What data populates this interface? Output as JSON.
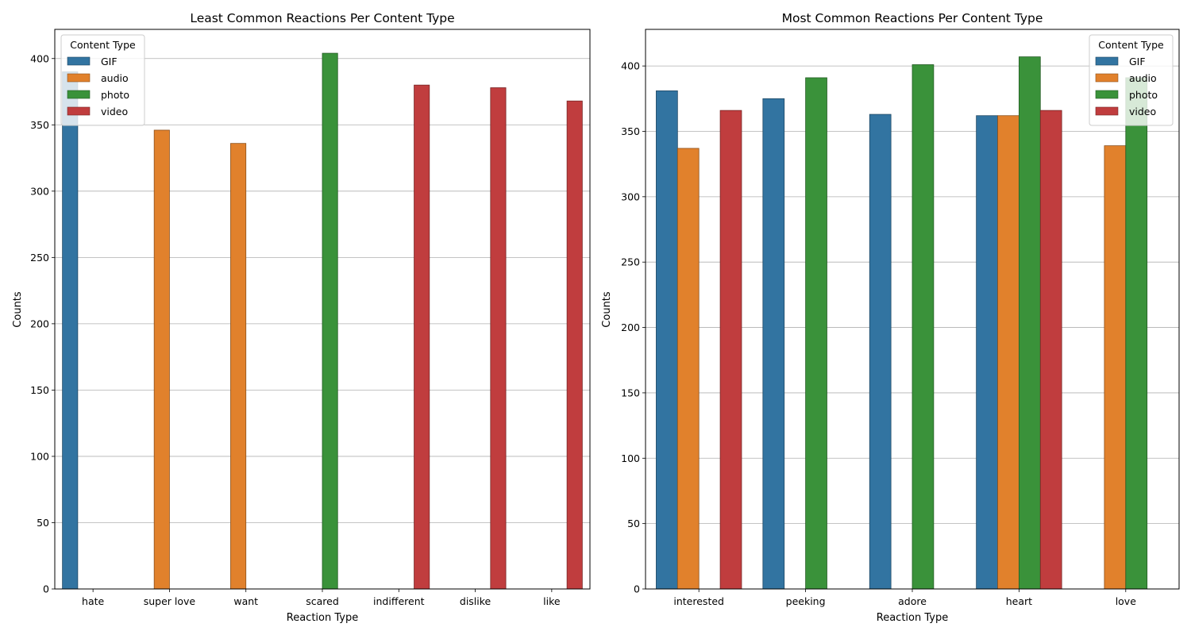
{
  "chart_data": [
    {
      "type": "bar",
      "title": "Least Common Reactions Per Content Type",
      "xlabel": "Reaction Type",
      "ylabel": "Counts",
      "ylim": [
        0,
        422
      ],
      "yticks": [
        0,
        50,
        100,
        150,
        200,
        250,
        300,
        350,
        400
      ],
      "grid": "y",
      "legend": {
        "title": "Content Type",
        "placement": "top-left"
      },
      "categories": [
        "hate",
        "super love",
        "want",
        "scared",
        "indifferent",
        "dislike",
        "like"
      ],
      "series": [
        {
          "name": "GIF",
          "color": "#3274a1",
          "values": [
            390,
            null,
            null,
            null,
            null,
            null,
            null
          ]
        },
        {
          "name": "audio",
          "color": "#e1812c",
          "values": [
            null,
            346,
            336,
            null,
            null,
            null,
            null
          ]
        },
        {
          "name": "photo",
          "color": "#3a923a",
          "values": [
            null,
            null,
            null,
            404,
            null,
            null,
            null
          ]
        },
        {
          "name": "video",
          "color": "#c03d3e",
          "values": [
            null,
            null,
            null,
            null,
            380,
            378,
            368
          ]
        }
      ]
    },
    {
      "type": "bar",
      "title": "Most Common Reactions Per Content Type",
      "xlabel": "Reaction Type",
      "ylabel": "Counts",
      "ylim": [
        0,
        428
      ],
      "yticks": [
        0,
        50,
        100,
        150,
        200,
        250,
        300,
        350,
        400
      ],
      "grid": "y",
      "legend": {
        "title": "Content Type",
        "placement": "top-right"
      },
      "categories": [
        "interested",
        "peeking",
        "adore",
        "heart",
        "love"
      ],
      "series": [
        {
          "name": "GIF",
          "color": "#3274a1",
          "values": [
            381,
            375,
            363,
            362,
            null
          ]
        },
        {
          "name": "audio",
          "color": "#e1812c",
          "values": [
            337,
            null,
            null,
            362,
            339
          ]
        },
        {
          "name": "photo",
          "color": "#3a923a",
          "values": [
            null,
            391,
            401,
            407,
            391
          ]
        },
        {
          "name": "video",
          "color": "#c03d3e",
          "values": [
            366,
            null,
            null,
            366,
            null
          ]
        }
      ]
    }
  ]
}
